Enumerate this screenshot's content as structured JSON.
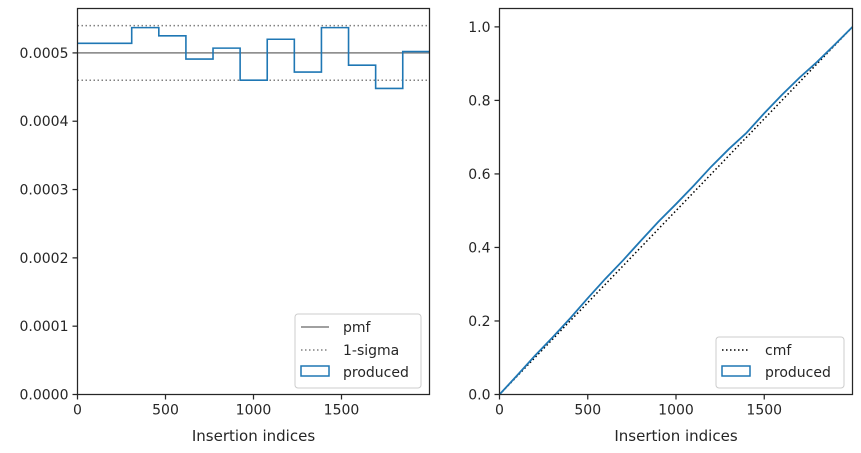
{
  "chart_data": [
    {
      "type": "step",
      "title": "",
      "xlabel": "Insertion indices",
      "ylabel": "",
      "xlim": [
        0,
        2000
      ],
      "ylim": [
        0,
        0.000565
      ],
      "xticks": [
        0,
        500,
        1000,
        1500
      ],
      "xtick_labels": [
        "0",
        "500",
        "1000",
        "1500"
      ],
      "yticks": [
        0,
        0.0001,
        0.0002,
        0.0003,
        0.0004,
        0.0005
      ],
      "ytick_labels": [
        "0.0000",
        "0.0001",
        "0.0002",
        "0.0003",
        "0.0004",
        "0.0005"
      ],
      "legend_position": "lower-right",
      "series": [
        {
          "name": "pmf",
          "kind": "hline",
          "y": 0.0005,
          "color": "#808080",
          "style": "solid"
        },
        {
          "name": "1-sigma",
          "kind": "hlines",
          "y": [
            0.00054,
            0.00046
          ],
          "color": "#808080",
          "style": "dotted"
        },
        {
          "name": "produced",
          "kind": "hist-step",
          "color": "#1f77b4",
          "bin_edges": [
            0,
            308,
            462,
            616,
            770,
            924,
            1078,
            1232,
            1386,
            1540,
            1694,
            1848,
            2000
          ],
          "values": [
            0.000514,
            0.000537,
            0.000525,
            0.000491,
            0.000507,
            0.00046,
            0.00052,
            0.000472,
            0.000537,
            0.000482,
            0.000448,
            0.000502
          ]
        }
      ]
    },
    {
      "type": "line",
      "title": "",
      "xlabel": "Insertion indices",
      "ylabel": "",
      "xlim": [
        0,
        2000
      ],
      "ylim": [
        0,
        1.05
      ],
      "xticks": [
        0,
        500,
        1000,
        1500
      ],
      "xtick_labels": [
        "0",
        "500",
        "1000",
        "1500"
      ],
      "yticks": [
        0,
        0.2,
        0.4,
        0.6,
        0.8,
        1.0
      ],
      "ytick_labels": [
        "0.0",
        "0.2",
        "0.4",
        "0.6",
        "0.8",
        "1.0"
      ],
      "legend_position": "lower-right",
      "series": [
        {
          "name": "cmf",
          "color": "#000000",
          "style": "dotted",
          "x": [
            0,
            2000
          ],
          "y": [
            0,
            1.0
          ]
        },
        {
          "name": "produced",
          "color": "#1f77b4",
          "style": "solid",
          "x": [
            0,
            100,
            200,
            300,
            400,
            500,
            600,
            700,
            800,
            900,
            1000,
            1100,
            1200,
            1300,
            1400,
            1500,
            1600,
            1700,
            1800,
            1900,
            2000
          ],
          "y": [
            0,
            0.052,
            0.105,
            0.155,
            0.207,
            0.262,
            0.315,
            0.365,
            0.418,
            0.47,
            0.518,
            0.568,
            0.62,
            0.668,
            0.712,
            0.765,
            0.815,
            0.862,
            0.905,
            0.952,
            1.0
          ]
        }
      ]
    }
  ]
}
